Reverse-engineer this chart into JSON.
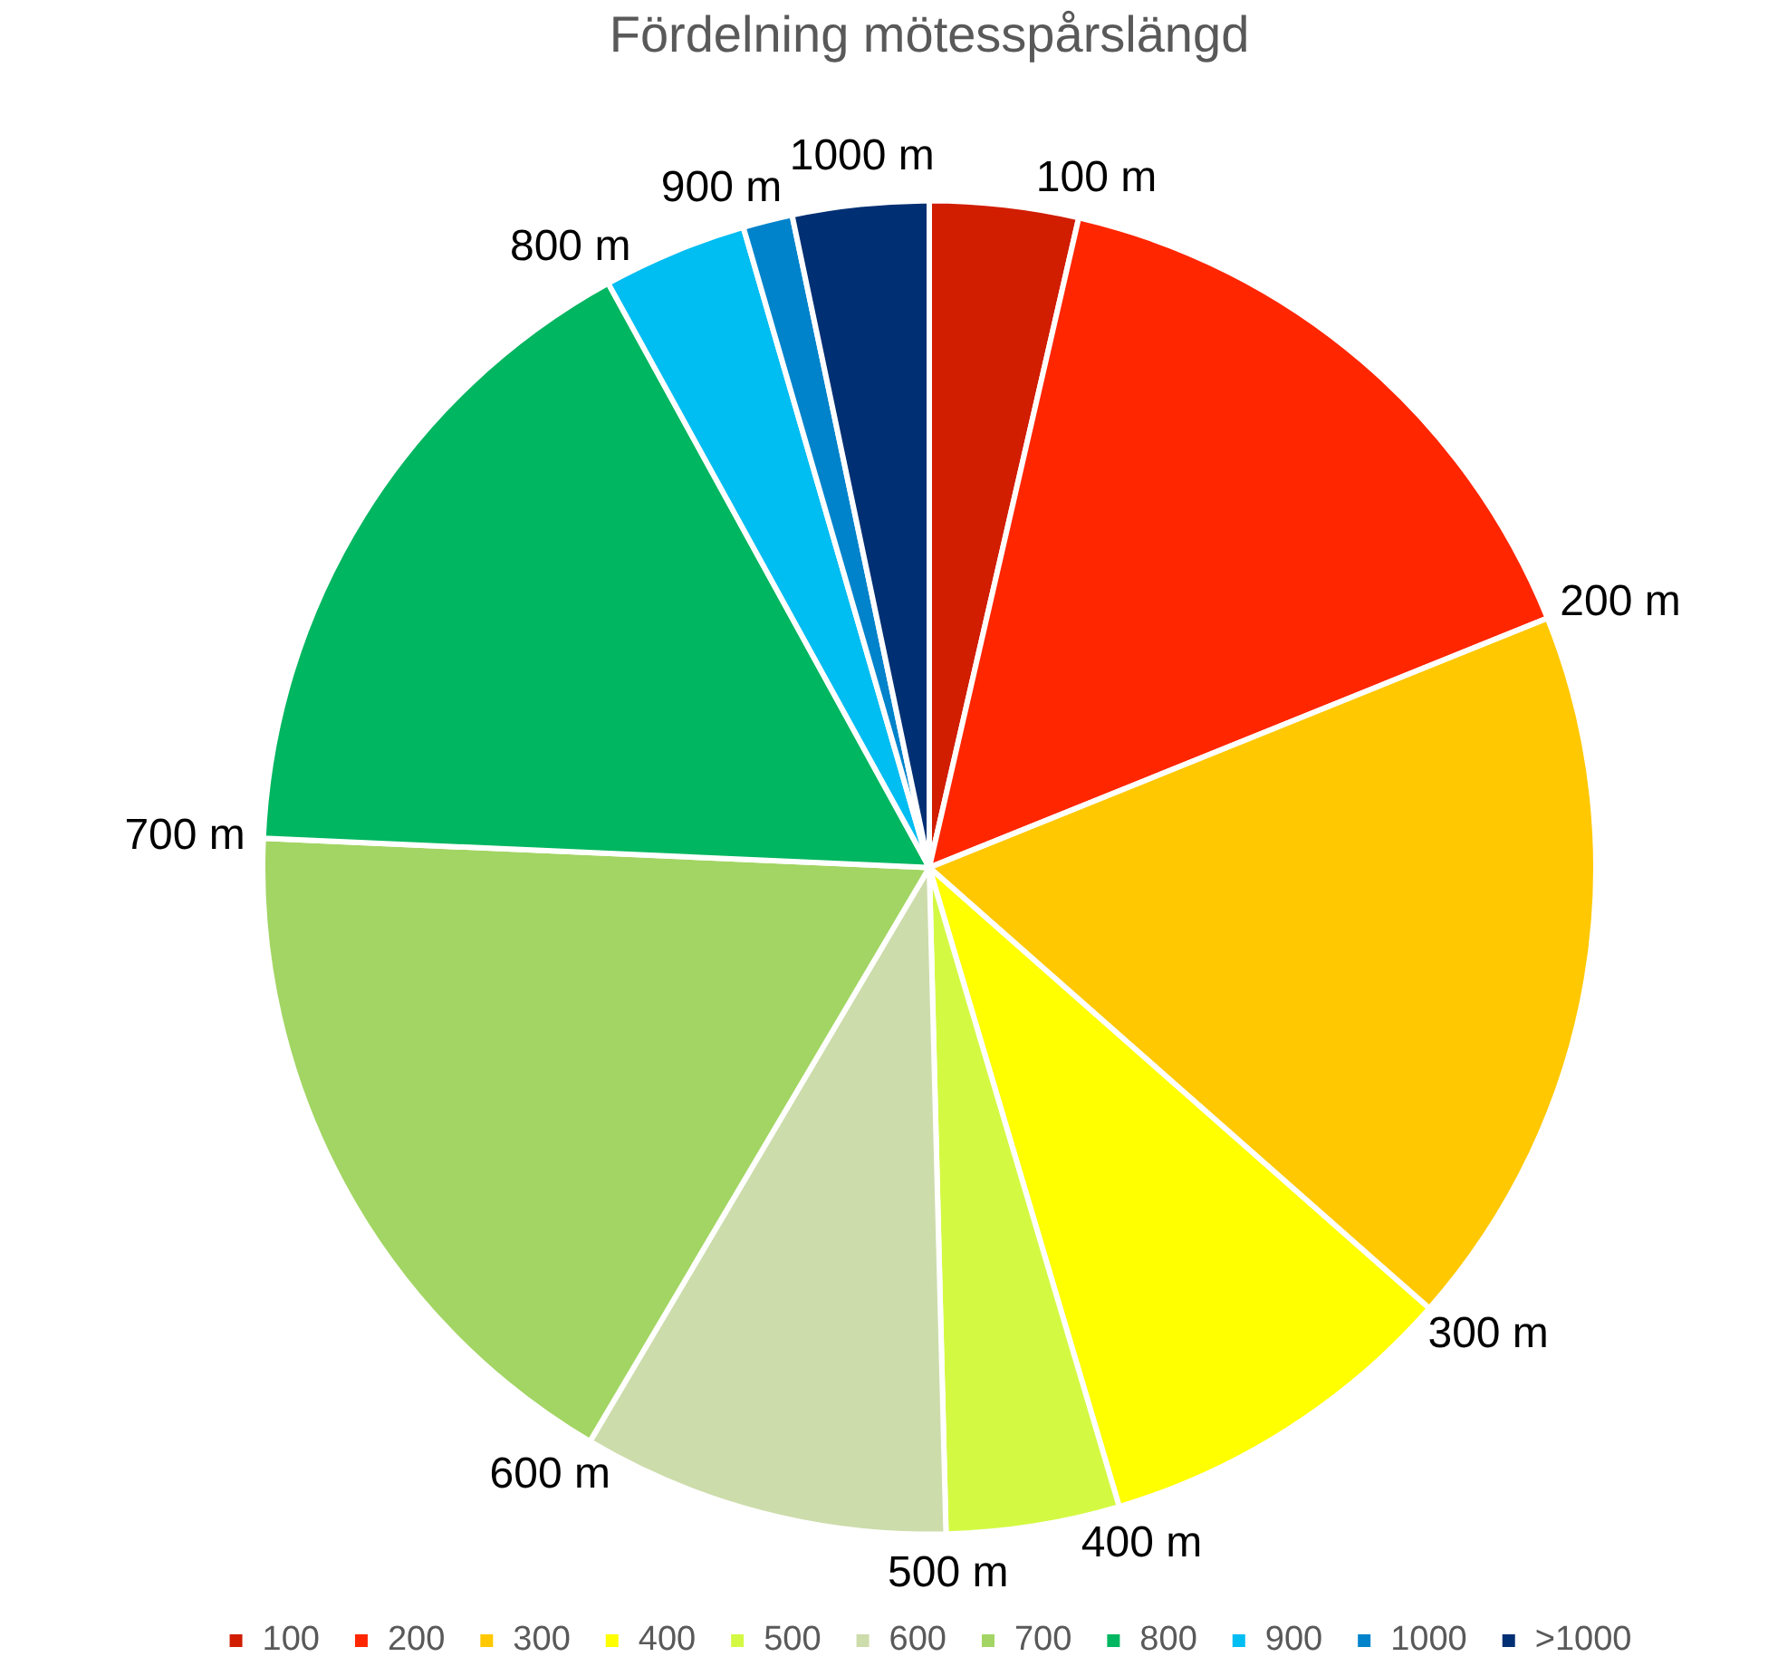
{
  "chart_data": {
    "type": "pie",
    "title": "Fördelning mötesspårslängd",
    "categories": [
      "100",
      "200",
      "300",
      "400",
      "500",
      "600",
      "700",
      "800",
      "900",
      "1000",
      ">1000"
    ],
    "values": [
      3.6,
      15.3,
      17.6,
      8.9,
      4.2,
      8.9,
      17.2,
      16.3,
      3.5,
      1.2,
      3.3
    ],
    "colors": [
      "#d11d00",
      "#ff2600",
      "#ffc800",
      "#ffff00",
      "#d4f943",
      "#cddcab",
      "#a2d563",
      "#00b660",
      "#00bdf2",
      "#0083cb",
      "#002f73"
    ],
    "annotations": [
      "100 m",
      "200 m",
      "300 m",
      "400 m",
      "500 m",
      "600 m",
      "700 m",
      "800 m",
      "900 m",
      "1000 m"
    ],
    "legend": "bottom"
  }
}
